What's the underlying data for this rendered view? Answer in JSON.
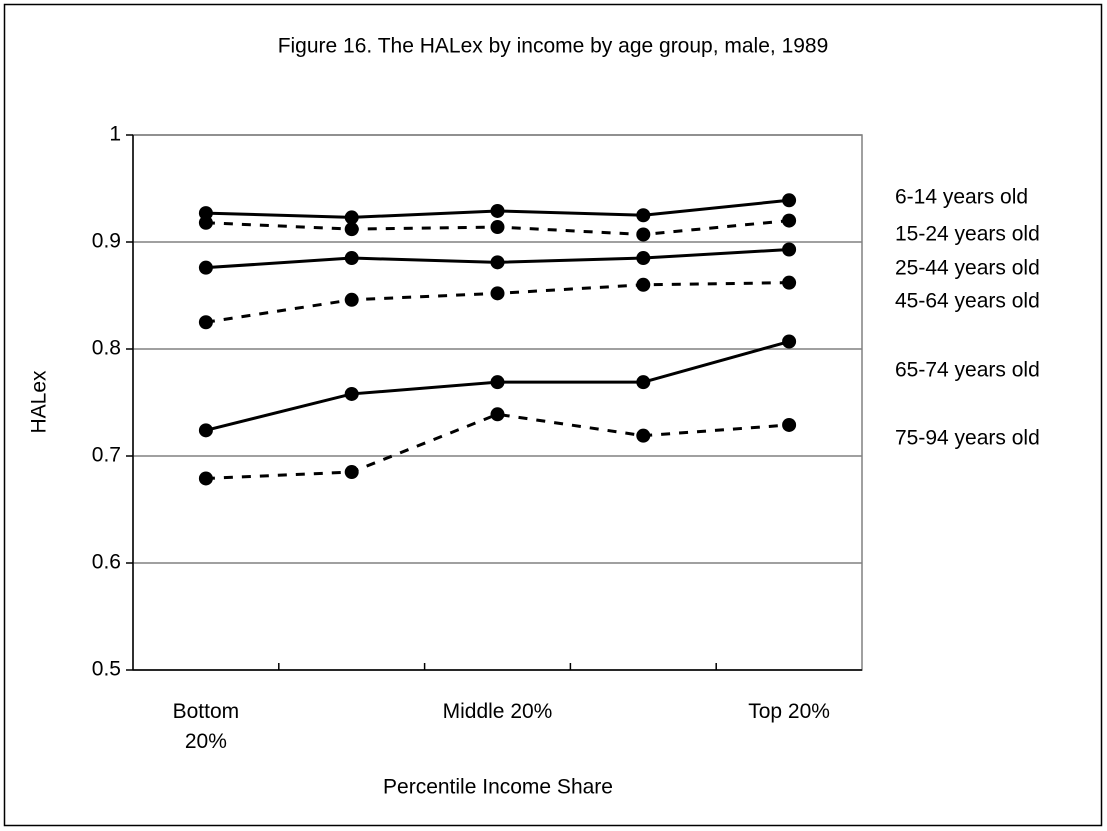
{
  "chart_data": {
    "type": "line",
    "title": "Figure 16. The HALex by income by age group, male, 1989",
    "x_label": "Percentile Income Share",
    "y_label": "HALex",
    "categories": [
      "Bottom 20%",
      null,
      "Middle 20%",
      null,
      "Top 20%"
    ],
    "ylim": [
      0.5,
      1
    ],
    "yticks": [
      0.5,
      0.6,
      0.7,
      0.8,
      0.9,
      1
    ],
    "grid": true,
    "legend": "right",
    "series": [
      {
        "name": "6-14 years old",
        "color": "#000000",
        "line_style": "solid",
        "values": [
          0.927,
          0.923,
          0.929,
          0.925,
          0.939
        ]
      },
      {
        "name": "15-24 years old",
        "color": "#000000",
        "line_style": "dashed",
        "values": [
          0.918,
          0.912,
          0.914,
          0.907,
          0.92
        ]
      },
      {
        "name": "25-44 years old",
        "color": "#000000",
        "line_style": "solid",
        "values": [
          0.876,
          0.885,
          0.881,
          0.885,
          0.893
        ]
      },
      {
        "name": "45-64 years old",
        "color": "#000000",
        "line_style": "dashed",
        "values": [
          0.825,
          0.846,
          0.852,
          0.86,
          0.862
        ]
      },
      {
        "name": "65-74 years old",
        "color": "#000000",
        "line_style": "solid",
        "values": [
          0.724,
          0.758,
          0.769,
          0.769,
          0.807
        ]
      },
      {
        "name": "75-94 years old",
        "color": "#000000",
        "line_style": "dashed",
        "values": [
          0.679,
          0.685,
          0.739,
          0.719,
          0.729
        ]
      }
    ]
  }
}
